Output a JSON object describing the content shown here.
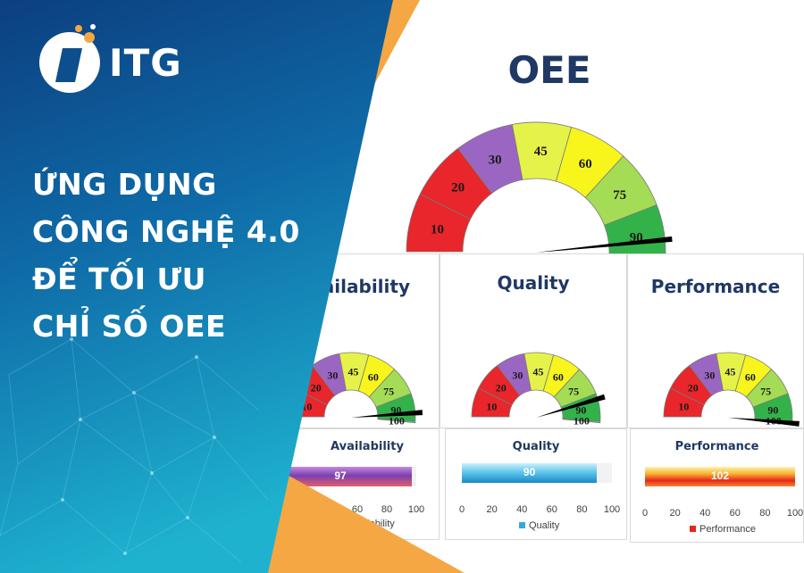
{
  "brand": {
    "name": "ITG",
    "logo_icon": "itg-logo-icon"
  },
  "headline": {
    "lines": [
      "ỨNG DỤNG",
      "CÔNG NGHỆ 4.0",
      "ĐỂ TỐI ƯU",
      "CHỈ SỐ OEE"
    ]
  },
  "dashboard": {
    "title": "OEE",
    "gauge_ticks": [
      "10",
      "20",
      "30",
      "45",
      "60",
      "75",
      "90",
      "100"
    ],
    "gauge_colors": [
      "#e8262b",
      "#e8262b",
      "#9b66c2",
      "#e5f24a",
      "#f8f51c",
      "#a4dc55",
      "#33b24a",
      "#39d67a"
    ],
    "panels": [
      {
        "title": "Availability",
        "bar_title": "Availability",
        "value": 97,
        "legend": "Availability",
        "needle_pct": 97
      },
      {
        "title": "Quality",
        "bar_title": "Quality",
        "value": 90,
        "legend": "Quality",
        "needle_pct": 90
      },
      {
        "title": "Performance",
        "bar_title": "Performance",
        "value": 102,
        "legend": "Performance",
        "needle_pct": 102
      }
    ],
    "axis_ticks": [
      "0",
      "20",
      "40",
      "60",
      "80",
      "100"
    ],
    "main_needle_pct": 96
  },
  "colors": {
    "blue_dark": "#0d4f8c",
    "blue_light": "#20a4c8",
    "orange": "#f5a743",
    "title_navy": "#1f3864"
  }
}
